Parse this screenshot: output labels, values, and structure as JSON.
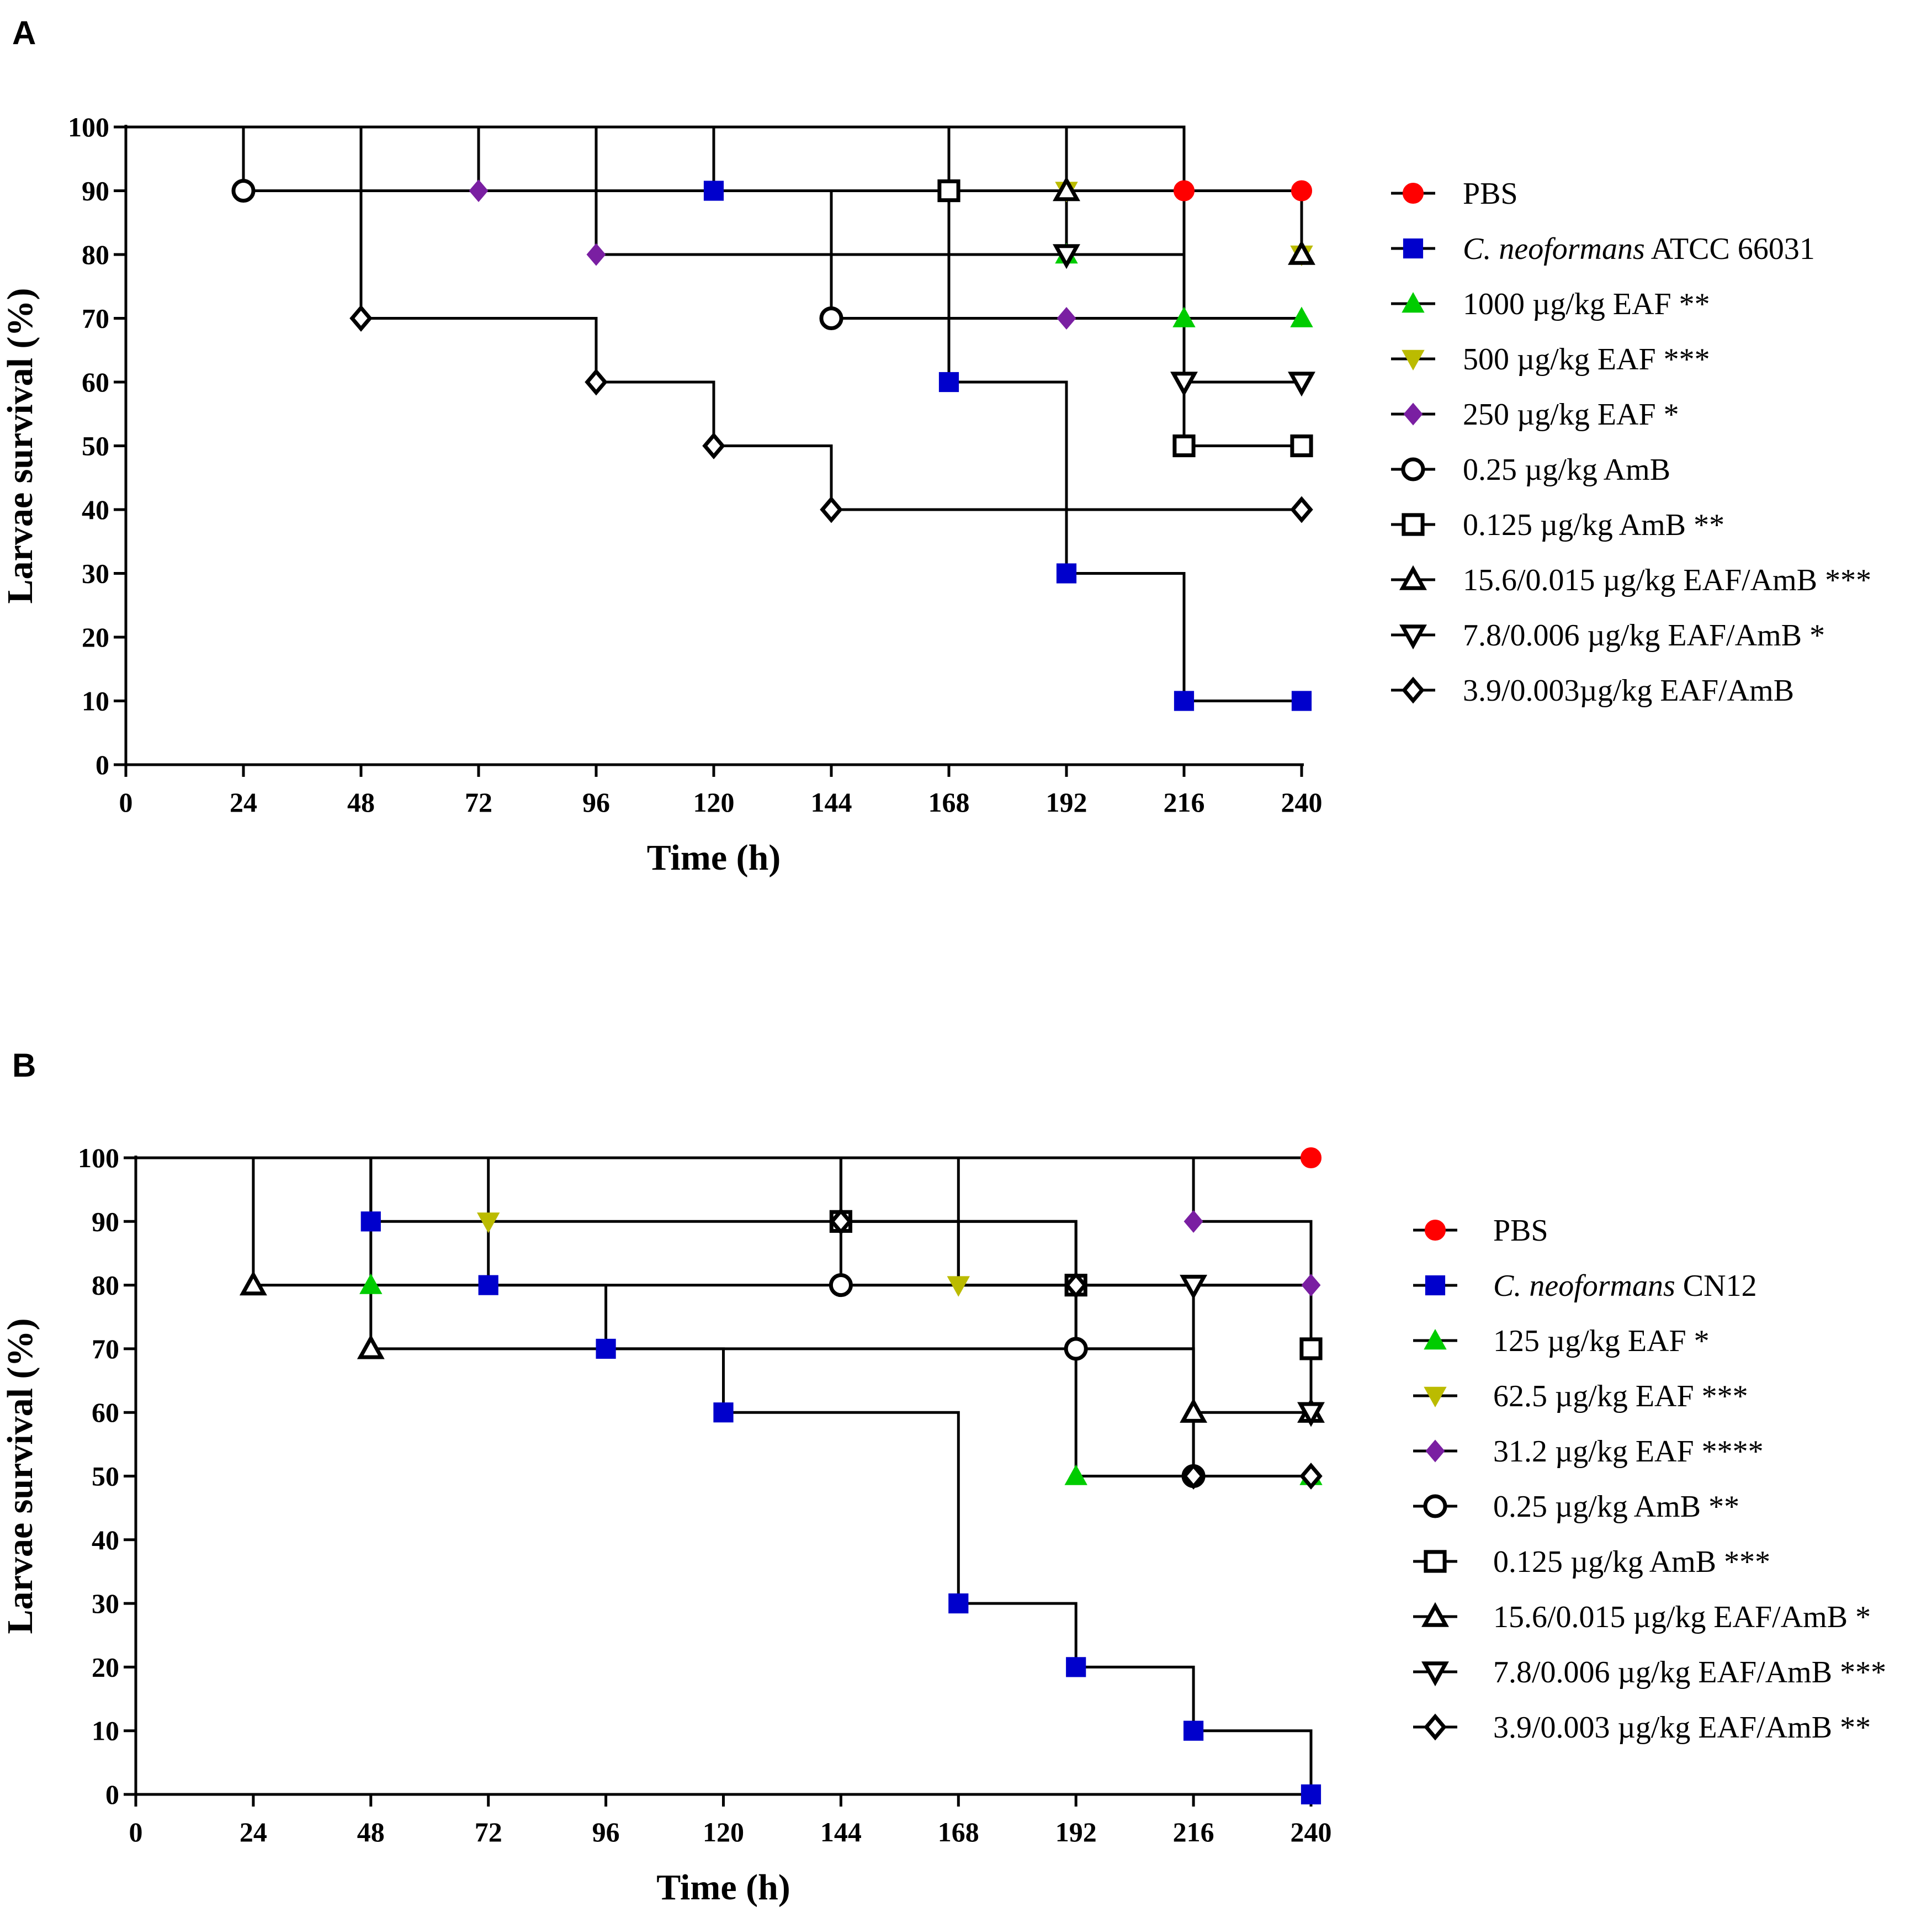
{
  "chart_data": [
    {
      "panel": "A",
      "type": "line",
      "subtype": "kaplan-meier survival curve",
      "xlabel": "Time (h)",
      "ylabel": "Larvae survival (%)",
      "xlim": [
        0,
        240
      ],
      "ylim": [
        0,
        100
      ],
      "xticks": [
        0,
        24,
        48,
        72,
        96,
        120,
        144,
        168,
        192,
        216,
        240
      ],
      "yticks": [
        0,
        10,
        20,
        30,
        40,
        50,
        60,
        70,
        80,
        90,
        100
      ],
      "legend_position": "right",
      "series": [
        {
          "name": "PBS",
          "marker": "circle",
          "filled": true,
          "color": "#ff0000",
          "mx": [
            216,
            240
          ],
          "my": [
            90,
            90
          ],
          "x": [
            0,
            216,
            216,
            240
          ],
          "y": [
            100,
            100,
            90,
            90
          ]
        },
        {
          "name": "C. neoformans ATCC 66031",
          "italic_part": "C. neoformans",
          "plain_part": " ATCC 66031",
          "marker": "square",
          "filled": true,
          "color": "#0000cc",
          "mx": [
            120,
            168,
            192,
            216,
            240
          ],
          "my": [
            90,
            60,
            30,
            10,
            10
          ],
          "x": [
            0,
            120,
            120,
            168,
            168,
            192,
            192,
            216,
            216,
            240
          ],
          "y": [
            100,
            100,
            90,
            90,
            60,
            60,
            30,
            30,
            10,
            10
          ]
        },
        {
          "name": "1000 µg/kg EAF **",
          "marker": "triangle-up",
          "filled": true,
          "color": "#00cc00",
          "mx": [
            168,
            192,
            216,
            240
          ],
          "my": [
            90,
            80,
            70,
            70
          ],
          "x": [
            0,
            168,
            168,
            192,
            192,
            216,
            216,
            240
          ],
          "y": [
            100,
            100,
            90,
            90,
            80,
            80,
            70,
            70
          ]
        },
        {
          "name": "500 µg/kg EAF ***",
          "marker": "triangle-down",
          "filled": true,
          "color": "#bbbb00",
          "mx": [
            192,
            240
          ],
          "my": [
            90,
            80
          ],
          "x": [
            0,
            192,
            192,
            240,
            240
          ],
          "y": [
            100,
            100,
            90,
            90,
            80
          ]
        },
        {
          "name": "250 µg/kg EAF *",
          "marker": "diamond",
          "filled": true,
          "color": "#7a1fa2",
          "mx": [
            72,
            96,
            192
          ],
          "my": [
            90,
            80,
            70
          ],
          "x": [
            0,
            72,
            72,
            96,
            96,
            144,
            144,
            240
          ],
          "y": [
            100,
            100,
            90,
            90,
            80,
            80,
            70,
            70
          ]
        },
        {
          "name": "0.25 µg/kg AmB",
          "marker": "circle",
          "filled": false,
          "color": "#000000",
          "mx": [
            24,
            144
          ],
          "my": [
            90,
            70
          ],
          "x": [
            0,
            24,
            24,
            144,
            144,
            240
          ],
          "y": [
            100,
            100,
            90,
            90,
            70,
            70
          ]
        },
        {
          "name": "0.125 µg/kg AmB **",
          "marker": "square",
          "filled": false,
          "color": "#000000",
          "mx": [
            168,
            216,
            240
          ],
          "my": [
            90,
            50,
            50
          ],
          "x": [
            0,
            168,
            168,
            216,
            216,
            240
          ],
          "y": [
            100,
            100,
            90,
            90,
            50,
            50
          ]
        },
        {
          "name": "15.6/0.015 µg/kg EAF/AmB ***",
          "marker": "triangle-up",
          "filled": false,
          "color": "#000000",
          "mx": [
            192,
            240
          ],
          "my": [
            90,
            80
          ],
          "x": [
            0,
            24,
            24,
            240,
            240
          ],
          "y": [
            100,
            100,
            90,
            90,
            80
          ]
        },
        {
          "name": "7.8/0.006 µg/kg EAF/AmB *",
          "marker": "triangle-down",
          "filled": false,
          "color": "#000000",
          "mx": [
            192,
            216,
            240
          ],
          "my": [
            80,
            60,
            60
          ],
          "x": [
            0,
            96,
            96,
            216,
            216,
            240
          ],
          "y": [
            100,
            100,
            80,
            80,
            60,
            60
          ]
        },
        {
          "name": "3.9/0.003µg/kg EAF/AmB",
          "marker": "diamond",
          "filled": false,
          "color": "#000000",
          "mx": [
            48,
            96,
            120,
            144,
            240
          ],
          "my": [
            70,
            60,
            50,
            40,
            40
          ],
          "x": [
            0,
            48,
            48,
            96,
            96,
            120,
            120,
            144,
            144,
            240
          ],
          "y": [
            100,
            100,
            70,
            70,
            60,
            60,
            50,
            50,
            40,
            40
          ]
        }
      ]
    },
    {
      "panel": "B",
      "type": "line",
      "subtype": "kaplan-meier survival curve",
      "xlabel": "Time (h)",
      "ylabel": "Larvae survival (%)",
      "xlim": [
        0,
        240
      ],
      "ylim": [
        0,
        100
      ],
      "xticks": [
        0,
        24,
        48,
        72,
        96,
        120,
        144,
        168,
        192,
        216,
        240
      ],
      "yticks": [
        0,
        10,
        20,
        30,
        40,
        50,
        60,
        70,
        80,
        90,
        100
      ],
      "legend_position": "right",
      "series": [
        {
          "name": "PBS",
          "marker": "circle",
          "filled": true,
          "color": "#ff0000",
          "mx": [
            240
          ],
          "my": [
            100
          ],
          "x": [
            0,
            240
          ],
          "y": [
            100,
            100
          ]
        },
        {
          "name": "C. neoformans CN12",
          "italic_part": "C. neoformans",
          "plain_part": " CN12",
          "marker": "square",
          "filled": true,
          "color": "#0000cc",
          "mx": [
            48,
            72,
            96,
            120,
            168,
            192,
            216,
            240
          ],
          "my": [
            90,
            80,
            70,
            60,
            30,
            20,
            10,
            0
          ],
          "x": [
            0,
            48,
            48,
            72,
            72,
            96,
            96,
            120,
            120,
            168,
            168,
            192,
            192,
            216,
            216,
            240,
            240
          ],
          "y": [
            100,
            100,
            90,
            90,
            80,
            80,
            70,
            70,
            60,
            60,
            30,
            30,
            20,
            20,
            10,
            10,
            0
          ]
        },
        {
          "name": "125 µg/kg EAF *",
          "marker": "triangle-up",
          "filled": true,
          "color": "#00cc00",
          "mx": [
            48,
            192,
            240
          ],
          "my": [
            80,
            50,
            50
          ],
          "x": [
            0,
            48,
            48,
            192,
            192,
            240
          ],
          "y": [
            100,
            100,
            80,
            80,
            50,
            50
          ]
        },
        {
          "name": "62.5 µg/kg EAF ***",
          "marker": "triangle-down",
          "filled": true,
          "color": "#bbbb00",
          "mx": [
            72,
            168,
            240
          ],
          "my": [
            90,
            80,
            70
          ],
          "x": [
            0,
            72,
            72,
            168,
            168,
            240,
            240
          ],
          "y": [
            100,
            100,
            90,
            90,
            80,
            80,
            70
          ]
        },
        {
          "name": "31.2 µg/kg EAF ****",
          "marker": "diamond",
          "filled": true,
          "color": "#7a1fa2",
          "mx": [
            216,
            240
          ],
          "my": [
            90,
            80
          ],
          "x": [
            0,
            216,
            216,
            240,
            240
          ],
          "y": [
            100,
            100,
            90,
            90,
            80
          ]
        },
        {
          "name": "0.25 µg/kg AmB **",
          "marker": "circle",
          "filled": false,
          "color": "#000000",
          "mx": [
            144,
            192,
            216
          ],
          "my": [
            80,
            70,
            50
          ],
          "x": [
            0,
            144,
            144,
            192,
            192,
            216,
            216,
            240
          ],
          "y": [
            100,
            100,
            80,
            80,
            70,
            70,
            50,
            50
          ]
        },
        {
          "name": "0.125 µg/kg AmB ***",
          "marker": "square",
          "filled": false,
          "color": "#000000",
          "mx": [
            144,
            192,
            240
          ],
          "my": [
            90,
            80,
            70
          ],
          "x": [
            0,
            144,
            144,
            192,
            192,
            240,
            240
          ],
          "y": [
            100,
            100,
            90,
            90,
            80,
            80,
            70
          ]
        },
        {
          "name": "15.6/0.015 µg/kg EAF/AmB *",
          "marker": "triangle-up",
          "filled": false,
          "color": "#000000",
          "mx": [
            24,
            48,
            216,
            240
          ],
          "my": [
            80,
            70,
            60,
            60
          ],
          "x": [
            0,
            24,
            24,
            48,
            48,
            216,
            216,
            240
          ],
          "y": [
            100,
            100,
            80,
            80,
            70,
            70,
            60,
            60
          ]
        },
        {
          "name": "7.8/0.006 µg/kg EAF/AmB ***",
          "marker": "triangle-down",
          "filled": false,
          "color": "#000000",
          "mx": [
            216,
            240
          ],
          "my": [
            80,
            60
          ],
          "x": [
            0,
            168,
            168,
            216,
            216,
            240,
            240
          ],
          "y": [
            100,
            100,
            80,
            80,
            80,
            80,
            60
          ]
        },
        {
          "name": "3.9/0.003 µg/kg EAF/AmB **",
          "marker": "diamond",
          "filled": false,
          "color": "#000000",
          "mx": [
            144,
            192,
            216,
            240
          ],
          "my": [
            90,
            80,
            50,
            50
          ],
          "x": [
            0,
            144,
            144,
            192,
            192,
            216,
            216,
            240
          ],
          "y": [
            100,
            100,
            90,
            90,
            80,
            80,
            50,
            50
          ]
        }
      ]
    }
  ]
}
